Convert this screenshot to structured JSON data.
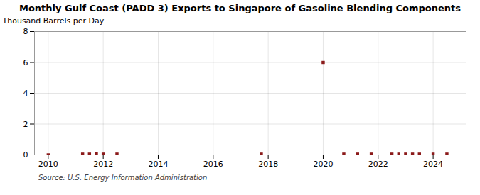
{
  "chart_data": {
    "type": "scatter",
    "title": "Monthly Gulf Coast (PADD 3) Exports to Singapore of Gasoline Blending Components",
    "ylabel": "Thousand Barrels per Day",
    "annotation": "Source: U.S. Energy Information Administration",
    "x": [
      2010.0,
      2011.25,
      2011.5,
      2011.75,
      2012.0,
      2012.5,
      2017.75,
      2020.0,
      2020.75,
      2021.25,
      2021.75,
      2022.5,
      2022.75,
      2023.0,
      2023.25,
      2023.5,
      2024.0,
      2024.5
    ],
    "values": [
      0.0,
      0.05,
      0.05,
      0.1,
      0.05,
      0.05,
      0.05,
      6.0,
      0.05,
      0.05,
      0.05,
      0.05,
      0.05,
      0.05,
      0.05,
      0.05,
      0.05,
      0.05
    ],
    "color": "#8b1a1a",
    "marker": "square",
    "xlim": [
      2009.5,
      2025.2
    ],
    "xticks": [
      2010,
      2012,
      2014,
      2016,
      2018,
      2020,
      2022,
      2024
    ],
    "ylim": [
      0,
      8
    ],
    "yticks": [
      0,
      2,
      4,
      6,
      8
    ],
    "grid": true
  }
}
